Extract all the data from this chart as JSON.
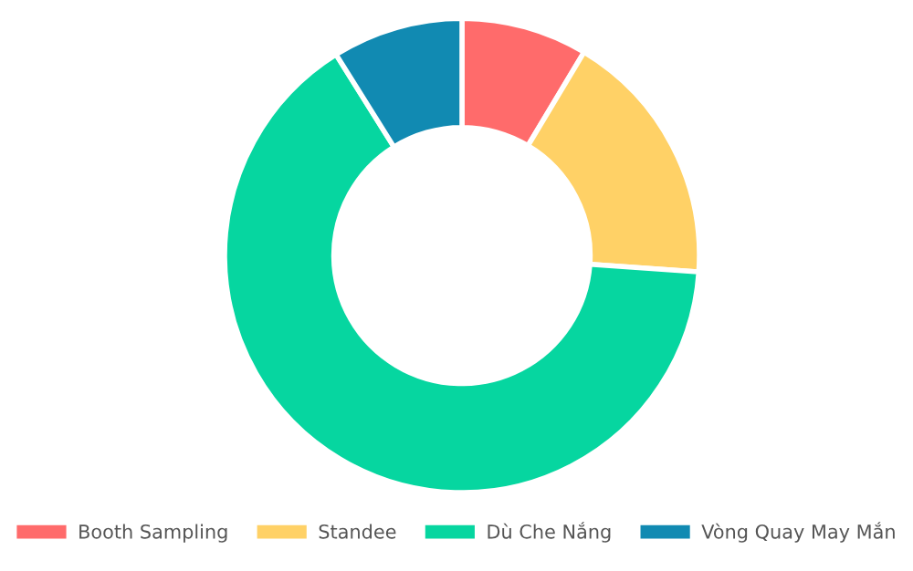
{
  "chart_data": {
    "type": "donut",
    "categories": [
      "Booth Sampling",
      "Standee",
      "Dù Che Nắng",
      "Vòng Quay May Mắn"
    ],
    "values": [
      8.6,
      17.5,
      65.0,
      8.9
    ],
    "colors": [
      "#ff6b6b",
      "#ffd166",
      "#06d6a0",
      "#118ab2"
    ],
    "legend": "bottom"
  }
}
